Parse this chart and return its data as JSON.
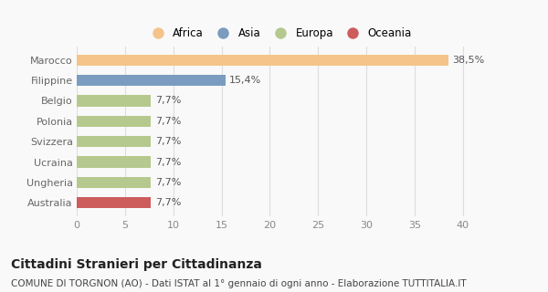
{
  "categories": [
    "Australia",
    "Ungheria",
    "Ucraina",
    "Svizzera",
    "Polonia",
    "Belgio",
    "Filippine",
    "Marocco"
  ],
  "values": [
    7.7,
    7.7,
    7.7,
    7.7,
    7.7,
    7.7,
    15.4,
    38.5
  ],
  "colors": [
    "#cd5c5c",
    "#b5c98e",
    "#b5c98e",
    "#b5c98e",
    "#b5c98e",
    "#b5c98e",
    "#7b9cc0",
    "#f5c48a"
  ],
  "labels": [
    "7,7%",
    "7,7%",
    "7,7%",
    "7,7%",
    "7,7%",
    "7,7%",
    "15,4%",
    "38,5%"
  ],
  "legend": [
    {
      "label": "Africa",
      "color": "#f5c48a"
    },
    {
      "label": "Asia",
      "color": "#7b9cc0"
    },
    {
      "label": "Europa",
      "color": "#b5c98e"
    },
    {
      "label": "Oceania",
      "color": "#cd5c5c"
    }
  ],
  "xlim": [
    0,
    42
  ],
  "xticks": [
    0,
    5,
    10,
    15,
    20,
    25,
    30,
    35,
    40
  ],
  "title": "Cittadini Stranieri per Cittadinanza",
  "subtitle": "COMUNE DI TORGNON (AO) - Dati ISTAT al 1° gennaio di ogni anno - Elaborazione TUTTITALIA.IT",
  "background_color": "#f9f9f9",
  "bar_height": 0.55,
  "label_fontsize": 8,
  "tick_fontsize": 8,
  "title_fontsize": 10,
  "subtitle_fontsize": 7.5
}
